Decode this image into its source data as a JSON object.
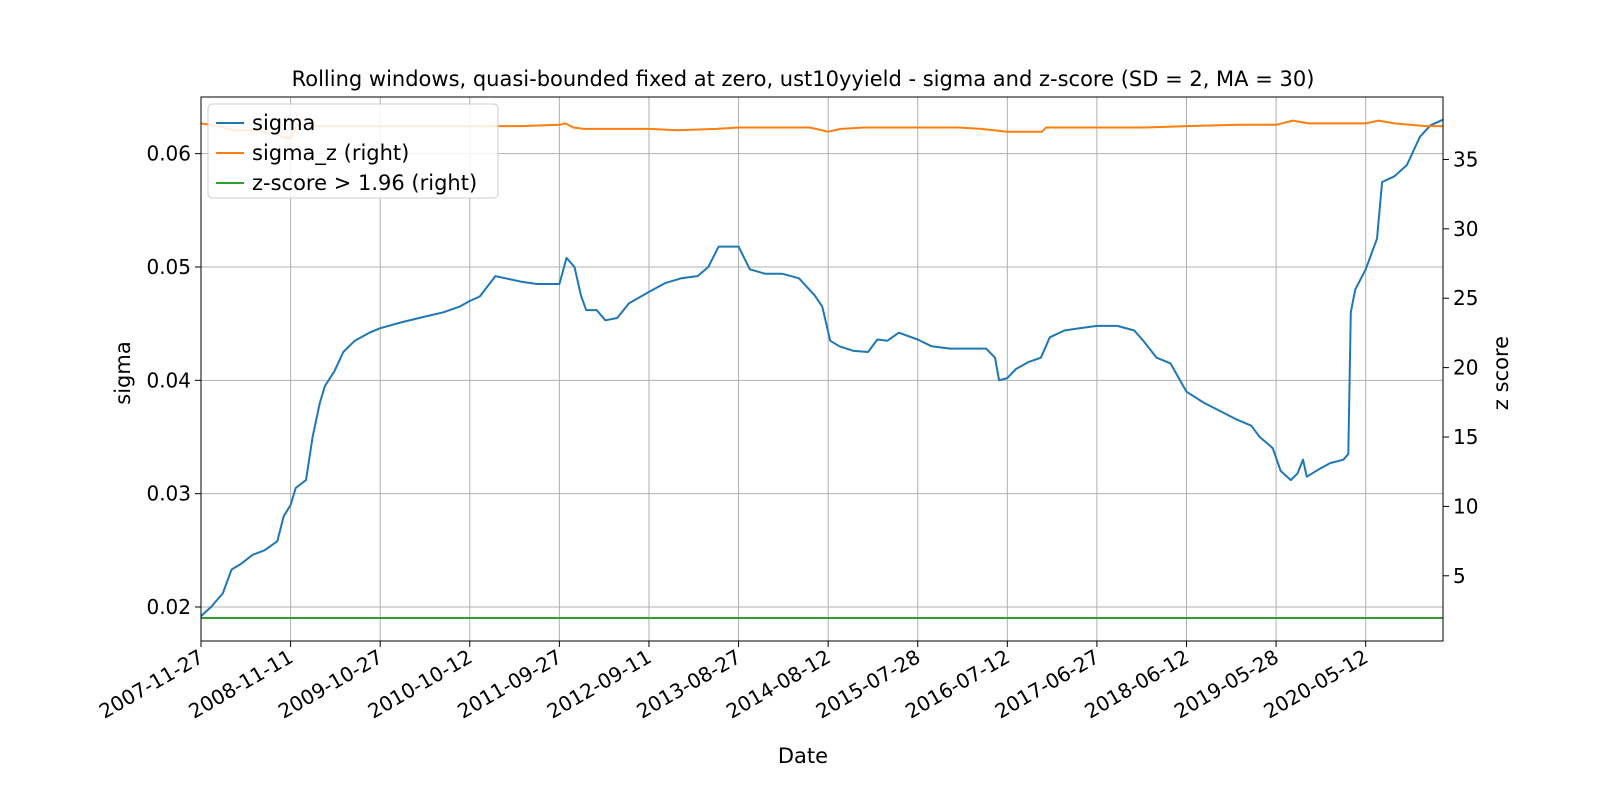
{
  "chart_data": {
    "type": "line",
    "title": "Rolling windows, quasi-bounded fixed at zero, ust10yyield - sigma and z-score (SD = 2, MA = 30)",
    "xlabel": "Date",
    "ylabel": "sigma",
    "y2label": "z score",
    "x_ticks": [
      "2007-11-27",
      "2008-11-11",
      "2009-10-27",
      "2010-10-12",
      "2011-09-27",
      "2012-09-11",
      "2013-08-27",
      "2014-08-12",
      "2015-07-28",
      "2016-07-12",
      "2017-06-27",
      "2018-06-12",
      "2019-05-28",
      "2020-05-12"
    ],
    "xlim": [
      "2007-11-27",
      "2021-03-10"
    ],
    "ylim": [
      0.017,
      0.065
    ],
    "y2lim": [
      0.3,
      39.5
    ],
    "y_ticks": [
      "0.02",
      "0.03",
      "0.04",
      "0.05",
      "0.06"
    ],
    "y2_ticks": [
      "5",
      "10",
      "15",
      "20",
      "25",
      "30",
      "35"
    ],
    "grid": true,
    "legend_position": "top-left",
    "series": [
      {
        "name": "sigma",
        "axis": "left",
        "color": "#1f77b4",
        "points": [
          [
            "2007-11-27",
            0.0192
          ],
          [
            "2008-01-05",
            0.02
          ],
          [
            "2008-02-20",
            0.0212
          ],
          [
            "2008-03-25",
            0.0233
          ],
          [
            "2008-05-01",
            0.0238
          ],
          [
            "2008-06-15",
            0.0246
          ],
          [
            "2008-08-01",
            0.025
          ],
          [
            "2008-09-20",
            0.0258
          ],
          [
            "2008-10-15",
            0.028
          ],
          [
            "2008-11-11",
            0.029
          ],
          [
            "2008-12-01",
            0.0305
          ],
          [
            "2009-01-10",
            0.0312
          ],
          [
            "2009-02-05",
            0.035
          ],
          [
            "2009-03-05",
            0.038
          ],
          [
            "2009-03-25",
            0.0395
          ],
          [
            "2009-05-01",
            0.0408
          ],
          [
            "2009-06-05",
            0.0425
          ],
          [
            "2009-07-20",
            0.0435
          ],
          [
            "2009-09-15",
            0.0442
          ],
          [
            "2009-10-27",
            0.0446
          ],
          [
            "2010-01-15",
            0.0451
          ],
          [
            "2010-04-15",
            0.0456
          ],
          [
            "2010-07-01",
            0.046
          ],
          [
            "2010-09-01",
            0.0465
          ],
          [
            "2010-10-12",
            0.047
          ],
          [
            "2010-11-20",
            0.0474
          ],
          [
            "2011-01-20",
            0.0492
          ],
          [
            "2011-03-01",
            0.049
          ],
          [
            "2011-05-01",
            0.0487
          ],
          [
            "2011-07-01",
            0.0485
          ],
          [
            "2011-09-27",
            0.0485
          ],
          [
            "2011-10-25",
            0.0508
          ],
          [
            "2011-11-25",
            0.05
          ],
          [
            "2011-12-20",
            0.0475
          ],
          [
            "2012-01-10",
            0.0462
          ],
          [
            "2012-02-20",
            0.0462
          ],
          [
            "2012-03-25",
            0.0453
          ],
          [
            "2012-05-10",
            0.0455
          ],
          [
            "2012-06-25",
            0.0468
          ],
          [
            "2012-09-11",
            0.0478
          ],
          [
            "2012-11-15",
            0.0486
          ],
          [
            "2013-01-15",
            0.049
          ],
          [
            "2013-03-20",
            0.0492
          ],
          [
            "2013-05-01",
            0.05
          ],
          [
            "2013-06-10",
            0.0518
          ],
          [
            "2013-08-27",
            0.0518
          ],
          [
            "2013-10-10",
            0.0498
          ],
          [
            "2013-12-10",
            0.0494
          ],
          [
            "2014-02-15",
            0.0494
          ],
          [
            "2014-04-20",
            0.049
          ],
          [
            "2014-06-20",
            0.0475
          ],
          [
            "2014-07-20",
            0.0465
          ],
          [
            "2014-08-20",
            0.0435
          ],
          [
            "2014-09-25",
            0.043
          ],
          [
            "2014-11-20",
            0.0426
          ],
          [
            "2015-01-15",
            0.0425
          ],
          [
            "2015-02-20",
            0.0436
          ],
          [
            "2015-04-01",
            0.0435
          ],
          [
            "2015-05-15",
            0.0442
          ],
          [
            "2015-07-28",
            0.0436
          ],
          [
            "2015-09-20",
            0.043
          ],
          [
            "2015-12-01",
            0.0428
          ],
          [
            "2016-02-15",
            0.0428
          ],
          [
            "2016-04-20",
            0.0428
          ],
          [
            "2016-05-25",
            0.042
          ],
          [
            "2016-06-10",
            0.04
          ],
          [
            "2016-07-12",
            0.0402
          ],
          [
            "2016-08-15",
            0.041
          ],
          [
            "2016-10-01",
            0.0416
          ],
          [
            "2016-11-20",
            0.042
          ],
          [
            "2016-12-25",
            0.0438
          ],
          [
            "2017-02-20",
            0.0444
          ],
          [
            "2017-04-20",
            0.0446
          ],
          [
            "2017-06-27",
            0.0448
          ],
          [
            "2017-09-15",
            0.0448
          ],
          [
            "2017-11-20",
            0.0444
          ],
          [
            "2017-12-25",
            0.0435
          ],
          [
            "2018-02-15",
            0.042
          ],
          [
            "2018-04-10",
            0.0415
          ],
          [
            "2018-06-12",
            0.039
          ],
          [
            "2018-08-20",
            0.038
          ],
          [
            "2018-10-20",
            0.0373
          ],
          [
            "2018-12-20",
            0.0366
          ],
          [
            "2019-02-20",
            0.036
          ],
          [
            "2019-03-25",
            0.035
          ],
          [
            "2019-04-25",
            0.0344
          ],
          [
            "2019-05-15",
            0.034
          ],
          [
            "2019-06-15",
            0.032
          ],
          [
            "2019-07-25",
            0.0312
          ],
          [
            "2019-08-20",
            0.0318
          ],
          [
            "2019-09-10",
            0.033
          ],
          [
            "2019-09-25",
            0.0315
          ],
          [
            "2019-11-15",
            0.0322
          ],
          [
            "2019-12-25",
            0.0327
          ],
          [
            "2020-02-15",
            0.033
          ],
          [
            "2020-03-05",
            0.0335
          ],
          [
            "2020-03-15",
            0.046
          ],
          [
            "2020-04-01",
            0.048
          ],
          [
            "2020-05-12",
            0.0498
          ],
          [
            "2020-06-25",
            0.0525
          ],
          [
            "2020-07-15",
            0.0575
          ],
          [
            "2020-09-01",
            0.058
          ],
          [
            "2020-10-20",
            0.059
          ],
          [
            "2020-12-10",
            0.0615
          ],
          [
            "2021-01-20",
            0.0625
          ],
          [
            "2021-03-10",
            0.063
          ]
        ]
      },
      {
        "name": "sigma_z (right)",
        "axis": "right",
        "color": "#ff7f0e",
        "points": [
          [
            "2007-11-27",
            37.6
          ],
          [
            "2008-02-01",
            37.4
          ],
          [
            "2008-04-01",
            37.1
          ],
          [
            "2008-07-01",
            37.1
          ],
          [
            "2008-09-01",
            36.9
          ],
          [
            "2008-10-15",
            36.6
          ],
          [
            "2008-11-11",
            36.5
          ],
          [
            "2008-12-10",
            37.6
          ],
          [
            "2009-01-15",
            37.5
          ],
          [
            "2009-03-01",
            37.4
          ],
          [
            "2009-10-27",
            37.4
          ],
          [
            "2010-10-12",
            37.4
          ],
          [
            "2011-05-01",
            37.4
          ],
          [
            "2011-09-27",
            37.5
          ],
          [
            "2011-10-20",
            37.6
          ],
          [
            "2011-11-20",
            37.3
          ],
          [
            "2012-01-01",
            37.2
          ],
          [
            "2012-06-01",
            37.2
          ],
          [
            "2012-09-11",
            37.2
          ],
          [
            "2013-01-01",
            37.1
          ],
          [
            "2013-06-01",
            37.2
          ],
          [
            "2013-08-27",
            37.3
          ],
          [
            "2014-06-01",
            37.3
          ],
          [
            "2014-07-20",
            37.1
          ],
          [
            "2014-08-12",
            37.0
          ],
          [
            "2014-10-01",
            37.2
          ],
          [
            "2015-01-01",
            37.3
          ],
          [
            "2015-07-28",
            37.3
          ],
          [
            "2016-01-01",
            37.3
          ],
          [
            "2016-04-01",
            37.2
          ],
          [
            "2016-07-12",
            37.0
          ],
          [
            "2016-10-01",
            37.0
          ],
          [
            "2016-11-25",
            37.0
          ],
          [
            "2016-12-10",
            37.3
          ],
          [
            "2017-06-27",
            37.3
          ],
          [
            "2018-01-01",
            37.3
          ],
          [
            "2018-06-12",
            37.4
          ],
          [
            "2019-01-01",
            37.5
          ],
          [
            "2019-05-28",
            37.5
          ],
          [
            "2019-08-01",
            37.8
          ],
          [
            "2019-10-01",
            37.6
          ],
          [
            "2020-01-01",
            37.6
          ],
          [
            "2020-05-12",
            37.6
          ],
          [
            "2020-07-01",
            37.8
          ],
          [
            "2020-09-01",
            37.6
          ],
          [
            "2021-01-01",
            37.4
          ],
          [
            "2021-03-10",
            37.4
          ]
        ]
      },
      {
        "name": "z-score > 1.96 (right)",
        "axis": "right",
        "color": "#2ca02c",
        "points": [
          [
            "2007-11-27",
            1.96
          ],
          [
            "2021-03-10",
            1.96
          ]
        ]
      }
    ]
  }
}
